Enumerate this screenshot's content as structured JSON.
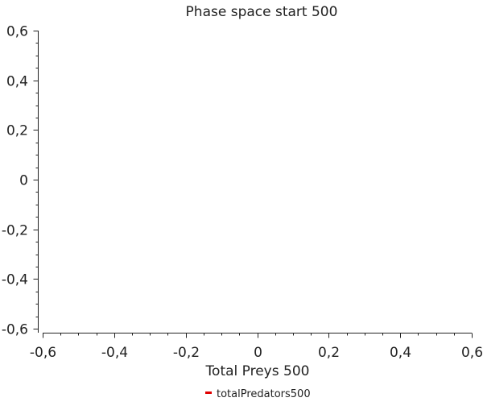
{
  "chart_data": {
    "type": "scatter",
    "title": "Phase space start 500",
    "xlabel": "Total Preys 500",
    "ylabel": "",
    "xlim": [
      -0.6,
      0.6
    ],
    "ylim": [
      -0.6,
      0.6
    ],
    "x_ticks": [
      "-0,6",
      "-0,4",
      "-0,2",
      "0",
      "0,2",
      "0,4",
      "0,6"
    ],
    "y_ticks": [
      "0,6",
      "0,4",
      "0,2",
      "0",
      "-0,2",
      "-0,4",
      "-0,6"
    ],
    "grid": false,
    "legend_placement": "bottom",
    "series": [
      {
        "name": "totalPredators500",
        "color": "#e00000",
        "x": [],
        "y": []
      }
    ]
  }
}
